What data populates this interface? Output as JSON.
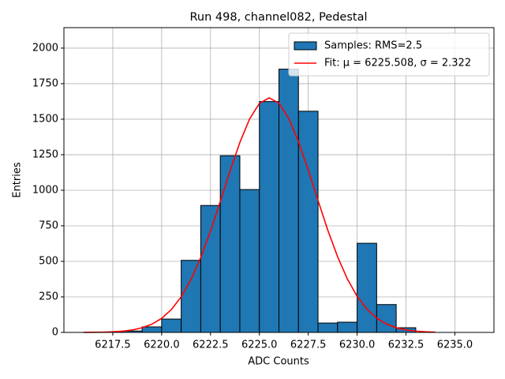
{
  "chart_data": {
    "type": "histogram",
    "title": "Run 498, channel082, Pedestal",
    "xlabel": "ADC Counts",
    "ylabel": "Entries",
    "bins": [
      6216,
      6217,
      6218,
      6219,
      6220,
      6221,
      6222,
      6223,
      6224,
      6225,
      6226,
      6227,
      6228,
      6229,
      6230,
      6231,
      6232,
      6233,
      6234,
      6235,
      6236
    ],
    "series": [
      {
        "name": "Samples: RMS=2.5",
        "color": "#1f77b4",
        "edgecolor": "#000000",
        "values": [
          0,
          2,
          10,
          39,
          94,
          507,
          893,
          1243,
          1005,
          1624,
          1852,
          1556,
          66,
          72,
          627,
          196,
          33,
          0,
          0,
          0
        ]
      }
    ],
    "lines": [
      {
        "name": "Fit: μ = 6225.508, σ = 2.322",
        "color": "#ff0000",
        "x": [
          6216,
          6216.5,
          6217,
          6217.5,
          6218,
          6218.5,
          6219,
          6219.5,
          6220,
          6220.5,
          6221,
          6221.5,
          6222,
          6222.5,
          6223,
          6223.5,
          6224,
          6224.5,
          6225,
          6225.5,
          6226,
          6226.5,
          6227,
          6227.5,
          6228,
          6228.5,
          6229,
          6229.5,
          6230,
          6230.5,
          6231,
          6231.5,
          6232,
          6232.5,
          6233,
          6233.5,
          6234
        ],
        "values": [
          0.4,
          0.9,
          2.0,
          4.3,
          8.9,
          17.4,
          32.5,
          58,
          99,
          161,
          251,
          372,
          527,
          713,
          921,
          1135,
          1336,
          1502,
          1611,
          1650,
          1613,
          1506,
          1342,
          1142,
          928,
          719,
          533,
          376,
          254,
          164,
          101,
          59,
          33,
          17.7,
          9.1,
          4.4,
          2.1
        ]
      }
    ],
    "xlim": [
      6215,
      6237
    ],
    "ylim": [
      0,
      2144
    ],
    "xticks": [
      6217.5,
      {
        "value": 6220,
        "label": "6220.0"
      },
      6222.5,
      {
        "value": 6225,
        "label": "6225.0"
      },
      6227.5,
      {
        "value": 6230,
        "label": "6230.0"
      },
      6232.5,
      {
        "value": 6235,
        "label": "6235.0"
      }
    ],
    "yticks": [
      0,
      250,
      500,
      750,
      1000,
      1250,
      1500,
      1750,
      2000
    ],
    "grid": true,
    "legend": "upper right"
  }
}
